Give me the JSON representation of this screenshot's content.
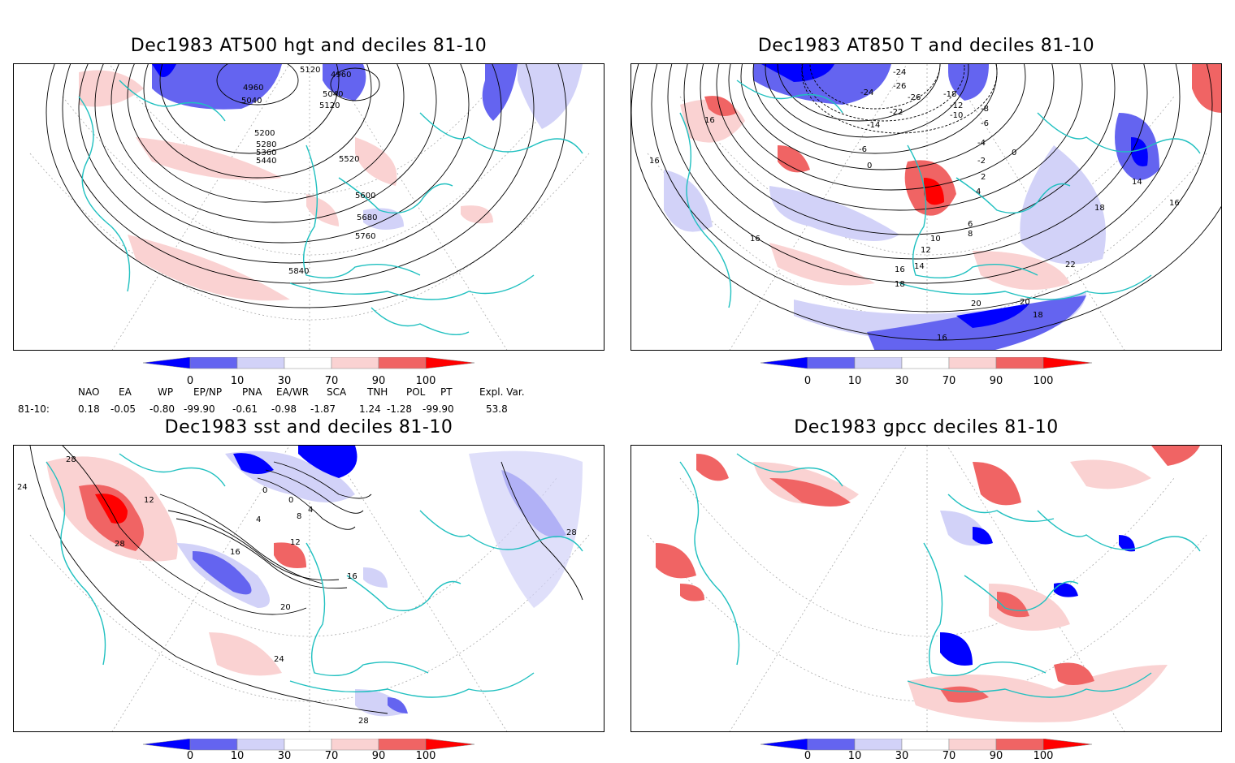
{
  "panels": [
    {
      "title": "Dec1983 AT500 hgt and deciles 81-10",
      "contour_labels": [
        "5120",
        "4960",
        "4960",
        "5040",
        "5040",
        "5120",
        "5200",
        "5280",
        "5360",
        "5440",
        "5520",
        "5600",
        "5680",
        "5760",
        "5840"
      ]
    },
    {
      "title": "Dec1983 AT850 T and deciles 81-10",
      "contour_labels": [
        "-24",
        "-26",
        "-18",
        "-24",
        "-26",
        "-22",
        "-12",
        "-10",
        "-14",
        "-8",
        "-6",
        "-6",
        "-4",
        "-2",
        "0",
        "0",
        "2",
        "4",
        "6",
        "8",
        "10",
        "12",
        "14",
        "16",
        "16",
        "16",
        "16",
        "18",
        "18",
        "20",
        "20",
        "22",
        "14",
        "16",
        "18",
        "16"
      ]
    },
    {
      "title": "Dec1983 sst and deciles 81-10",
      "contour_labels": [
        "28",
        "24",
        "12",
        "28",
        "0",
        "0",
        "4",
        "8",
        "4",
        "12",
        "16",
        "16",
        "20",
        "24",
        "28",
        "28"
      ]
    },
    {
      "title": "Dec1983 gpcc deciles 81-10",
      "contour_labels": []
    }
  ],
  "colorbar": {
    "ticks": [
      "0",
      "10",
      "30",
      "70",
      "90",
      "100"
    ],
    "colors": [
      "#0000ff",
      "#6464f0",
      "#d2d2f8",
      "#ffffff",
      "#fad2d2",
      "#f06464",
      "#ff0000"
    ]
  },
  "indices": {
    "names": [
      "NAO",
      "EA",
      "WP",
      "EP/NP",
      "PNA",
      "EA/WR",
      "SCA",
      "TNH",
      "POL",
      "PT",
      "Expl. Var."
    ],
    "row_label": "81-10:",
    "values": [
      "0.18",
      "-0.05",
      "-0.80",
      "-99.90",
      "-0.61",
      "-0.98",
      "-1.87",
      "1.24",
      "-1.28",
      "-99.90",
      "53.8"
    ]
  }
}
